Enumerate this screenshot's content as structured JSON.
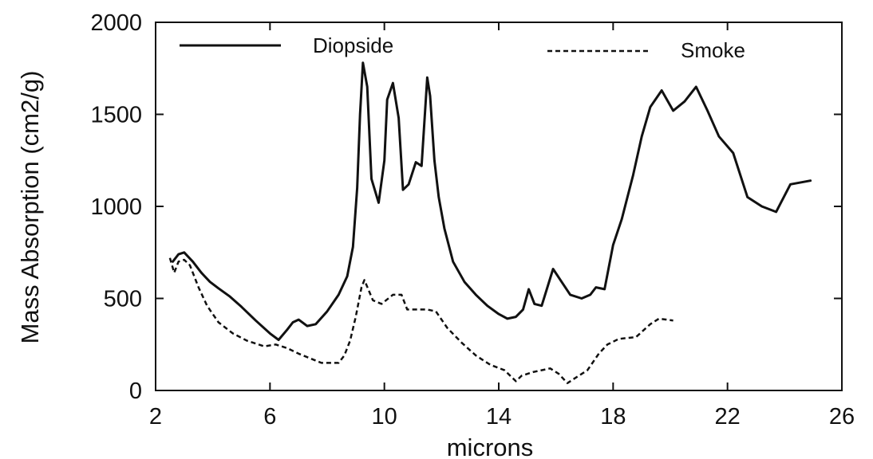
{
  "colors": {
    "line": "#111111",
    "background": "#ffffff"
  },
  "chart_data": {
    "type": "line",
    "title": "",
    "xlabel": "microns",
    "ylabel": "Mass Absorption (cm2/g)",
    "xlim": [
      2,
      26
    ],
    "ylim": [
      0,
      2000
    ],
    "x_ticks": [
      2,
      6,
      10,
      14,
      18,
      22,
      26
    ],
    "x_tick_labels": [
      "2",
      "6",
      "10",
      "14",
      "18",
      "22",
      "26"
    ],
    "y_ticks": [
      0,
      500,
      1000,
      1500,
      2000
    ],
    "y_tick_labels": [
      "0",
      "500",
      "1000",
      "1500",
      "2000"
    ],
    "grid": false,
    "legend": "top",
    "series": [
      {
        "name": "Diopside",
        "style": "solid",
        "points": [
          [
            2.6,
            700
          ],
          [
            2.8,
            740
          ],
          [
            3.0,
            750
          ],
          [
            3.3,
            700
          ],
          [
            3.6,
            640
          ],
          [
            3.9,
            590
          ],
          [
            4.2,
            555
          ],
          [
            4.6,
            510
          ],
          [
            5.0,
            455
          ],
          [
            5.5,
            380
          ],
          [
            6.0,
            310
          ],
          [
            6.3,
            275
          ],
          [
            6.6,
            330
          ],
          [
            6.8,
            370
          ],
          [
            7.0,
            385
          ],
          [
            7.3,
            350
          ],
          [
            7.6,
            360
          ],
          [
            8.0,
            430
          ],
          [
            8.4,
            520
          ],
          [
            8.7,
            620
          ],
          [
            8.9,
            780
          ],
          [
            9.05,
            1100
          ],
          [
            9.15,
            1500
          ],
          [
            9.25,
            1780
          ],
          [
            9.4,
            1650
          ],
          [
            9.55,
            1150
          ],
          [
            9.8,
            1020
          ],
          [
            10.0,
            1250
          ],
          [
            10.1,
            1580
          ],
          [
            10.3,
            1670
          ],
          [
            10.5,
            1480
          ],
          [
            10.65,
            1090
          ],
          [
            10.85,
            1120
          ],
          [
            11.1,
            1240
          ],
          [
            11.3,
            1220
          ],
          [
            11.5,
            1700
          ],
          [
            11.6,
            1600
          ],
          [
            11.75,
            1250
          ],
          [
            11.9,
            1050
          ],
          [
            12.1,
            880
          ],
          [
            12.4,
            700
          ],
          [
            12.8,
            590
          ],
          [
            13.2,
            520
          ],
          [
            13.6,
            460
          ],
          [
            14.0,
            415
          ],
          [
            14.3,
            390
          ],
          [
            14.6,
            400
          ],
          [
            14.85,
            440
          ],
          [
            15.05,
            550
          ],
          [
            15.25,
            470
          ],
          [
            15.5,
            460
          ],
          [
            15.9,
            660
          ],
          [
            16.2,
            590
          ],
          [
            16.5,
            520
          ],
          [
            16.9,
            500
          ],
          [
            17.2,
            520
          ],
          [
            17.4,
            560
          ],
          [
            17.7,
            550
          ],
          [
            18.0,
            790
          ],
          [
            18.3,
            930
          ],
          [
            18.7,
            1170
          ],
          [
            19.0,
            1380
          ],
          [
            19.3,
            1540
          ],
          [
            19.7,
            1630
          ],
          [
            20.1,
            1520
          ],
          [
            20.5,
            1570
          ],
          [
            20.9,
            1650
          ],
          [
            21.3,
            1520
          ],
          [
            21.7,
            1380
          ],
          [
            22.2,
            1290
          ],
          [
            22.7,
            1050
          ],
          [
            23.2,
            1000
          ],
          [
            23.7,
            970
          ],
          [
            24.2,
            1120
          ],
          [
            24.9,
            1140
          ]
        ]
      },
      {
        "name": "Smoke",
        "style": "dashed",
        "points": [
          [
            2.5,
            720
          ],
          [
            2.65,
            640
          ],
          [
            2.8,
            700
          ],
          [
            3.0,
            710
          ],
          [
            3.2,
            680
          ],
          [
            3.5,
            560
          ],
          [
            3.8,
            460
          ],
          [
            4.2,
            370
          ],
          [
            4.7,
            310
          ],
          [
            5.2,
            270
          ],
          [
            5.8,
            240
          ],
          [
            6.2,
            250
          ],
          [
            6.6,
            230
          ],
          [
            7.0,
            200
          ],
          [
            7.4,
            175
          ],
          [
            7.8,
            150
          ],
          [
            8.1,
            150
          ],
          [
            8.4,
            150
          ],
          [
            8.6,
            190
          ],
          [
            8.8,
            270
          ],
          [
            9.0,
            400
          ],
          [
            9.1,
            480
          ],
          [
            9.2,
            560
          ],
          [
            9.3,
            600
          ],
          [
            9.6,
            490
          ],
          [
            9.9,
            470
          ],
          [
            10.3,
            520
          ],
          [
            10.6,
            520
          ],
          [
            10.8,
            440
          ],
          [
            11.5,
            440
          ],
          [
            11.8,
            430
          ],
          [
            12.2,
            340
          ],
          [
            12.7,
            260
          ],
          [
            13.2,
            190
          ],
          [
            13.7,
            140
          ],
          [
            14.2,
            110
          ],
          [
            14.6,
            50
          ],
          [
            14.8,
            80
          ],
          [
            15.2,
            100
          ],
          [
            15.8,
            120
          ],
          [
            16.1,
            90
          ],
          [
            16.4,
            40
          ],
          [
            16.8,
            80
          ],
          [
            17.1,
            110
          ],
          [
            17.5,
            200
          ],
          [
            17.8,
            250
          ],
          [
            18.2,
            280
          ],
          [
            18.8,
            290
          ],
          [
            19.3,
            360
          ],
          [
            19.6,
            390
          ],
          [
            20.1,
            380
          ]
        ]
      }
    ]
  }
}
